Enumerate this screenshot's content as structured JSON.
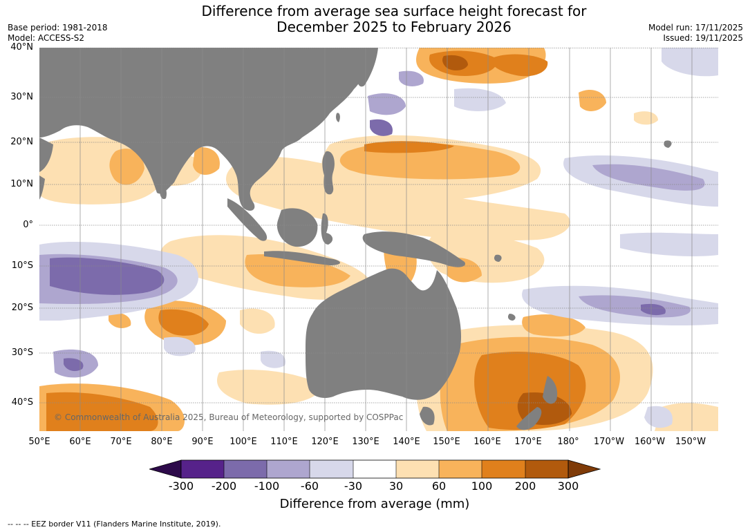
{
  "title_line1": "Difference from average sea surface height forecast for",
  "title_line2": "December 2025 to February 2026",
  "base_period": "Base period: 1981-2018",
  "model": "Model: ACCESS-S2",
  "model_run": "Model run: 17/11/2025",
  "issued": "Issued: 19/11/2025",
  "lat_labels": [
    "40°N",
    "30°N",
    "20°N",
    "10°N",
    "0°",
    "10°S",
    "20°S",
    "30°S",
    "40°S"
  ],
  "lon_labels": [
    "50°E",
    "60°E",
    "70°E",
    "80°E",
    "90°E",
    "100°E",
    "110°E",
    "120°E",
    "130°E",
    "140°E",
    "150°E",
    "160°E",
    "170°E",
    "180°",
    "170°W",
    "160°W",
    "150°W"
  ],
  "copyright": "© Commonwealth of Australia 2025, Bureau of Meteorology, supported by COSPPac",
  "colorbar": {
    "ticks": [
      "-300",
      "-200",
      "-100",
      "-60",
      "-30",
      "30",
      "60",
      "100",
      "200",
      "300"
    ],
    "label": "Difference from average (mm)",
    "colors": [
      "#2d0a4a",
      "#56228a",
      "#7c6bab",
      "#aea6cf",
      "#d7d8ea",
      "#ffffff",
      "#fde0b2",
      "#f8b35b",
      "#e0801c",
      "#b15a0d",
      "#7f3b08"
    ]
  },
  "palette": {
    "land": "#808080",
    "grid": "#8a8a8a"
  },
  "footer": "--  --  -- EEZ border V11 (Flanders Marine Institute, 2019)."
}
